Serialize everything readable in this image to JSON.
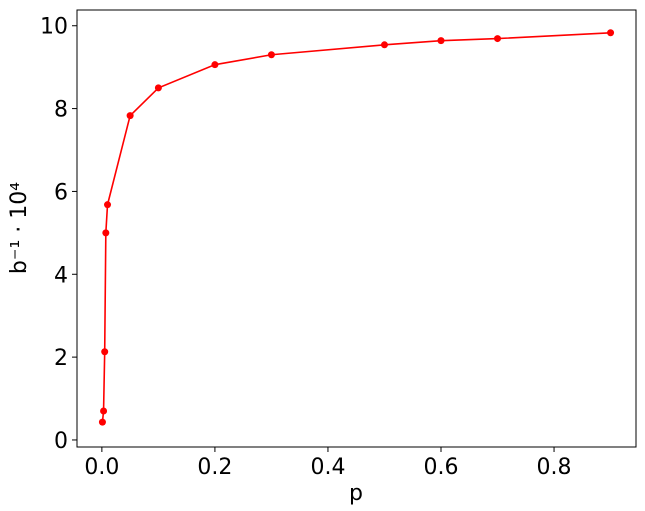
{
  "chart_data": {
    "type": "line",
    "x_label": "p",
    "y_label": "b⁻¹ · 10⁴",
    "x": [
      0.001,
      0.003,
      0.005,
      0.007,
      0.01,
      0.05,
      0.1,
      0.2,
      0.3,
      0.5,
      0.6,
      0.7,
      0.9
    ],
    "series": [
      {
        "color": "#ff0000",
        "values": [
          0.43,
          0.7,
          2.13,
          5.0,
          5.68,
          7.83,
          8.5,
          9.06,
          9.3,
          9.54,
          9.64,
          9.69,
          9.83
        ]
      }
    ],
    "xlim": [
      -0.044,
      0.945
    ],
    "xticks": [
      {
        "value": 0,
        "label": "0.0"
      },
      0.2,
      0.4,
      0.6,
      0.8
    ],
    "ylim": [
      -0.17,
      10.38
    ],
    "yticks": [
      0,
      2,
      4,
      6,
      8,
      10
    ],
    "grid": false
  }
}
